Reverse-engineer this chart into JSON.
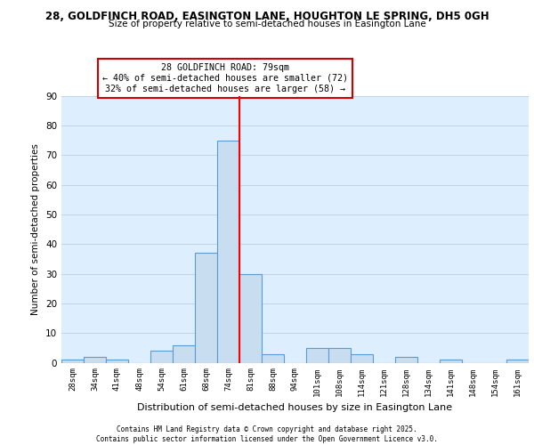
{
  "title_line1": "28, GOLDFINCH ROAD, EASINGTON LANE, HOUGHTON LE SPRING, DH5 0GH",
  "title_line2": "Size of property relative to semi-detached houses in Easington Lane",
  "xlabel": "Distribution of semi-detached houses by size in Easington Lane",
  "ylabel": "Number of semi-detached properties",
  "bin_labels": [
    "28sqm",
    "34sqm",
    "41sqm",
    "48sqm",
    "54sqm",
    "61sqm",
    "68sqm",
    "74sqm",
    "81sqm",
    "88sqm",
    "94sqm",
    "101sqm",
    "108sqm",
    "114sqm",
    "121sqm",
    "128sqm",
    "134sqm",
    "141sqm",
    "148sqm",
    "154sqm",
    "161sqm"
  ],
  "bar_heights": [
    1,
    2,
    1,
    0,
    4,
    6,
    37,
    75,
    30,
    3,
    0,
    5,
    5,
    3,
    0,
    2,
    0,
    1,
    0,
    0,
    1
  ],
  "bar_color": "#c9ddf0",
  "bar_edge_color": "#5b9bd5",
  "vline_x": 7.5,
  "vline_color": "red",
  "annotation_title": "28 GOLDFINCH ROAD: 79sqm",
  "annotation_line2": "← 40% of semi-detached houses are smaller (72)",
  "annotation_line3": "32% of semi-detached houses are larger (58) →",
  "annotation_box_color": "white",
  "annotation_box_edge": "#cc0000",
  "ylim": [
    0,
    90
  ],
  "yticks": [
    0,
    10,
    20,
    30,
    40,
    50,
    60,
    70,
    80,
    90
  ],
  "grid_color": "#c0d4e8",
  "background_color": "#ddeeff",
  "footer_line1": "Contains HM Land Registry data © Crown copyright and database right 2025.",
  "footer_line2": "Contains public sector information licensed under the Open Government Licence v3.0."
}
